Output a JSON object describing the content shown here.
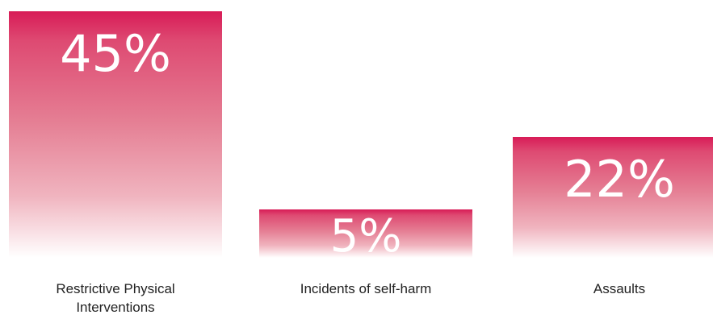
{
  "chart_data": {
    "type": "bar",
    "categories": [
      "Restrictive Physical Interventions",
      "Incidents of self-harm",
      "Assaults"
    ],
    "values": [
      45,
      5,
      22
    ],
    "data_labels": [
      "45%",
      "5%",
      "22%"
    ],
    "title": "",
    "xlabel": "",
    "ylabel": "",
    "ylim": [
      0,
      45
    ],
    "grid": false,
    "legend": "none",
    "colors": {
      "bar_top": "#d81b57",
      "bar_bottom": "#ffffff",
      "value_text": "#ffffff",
      "label_text": "#222222"
    }
  }
}
